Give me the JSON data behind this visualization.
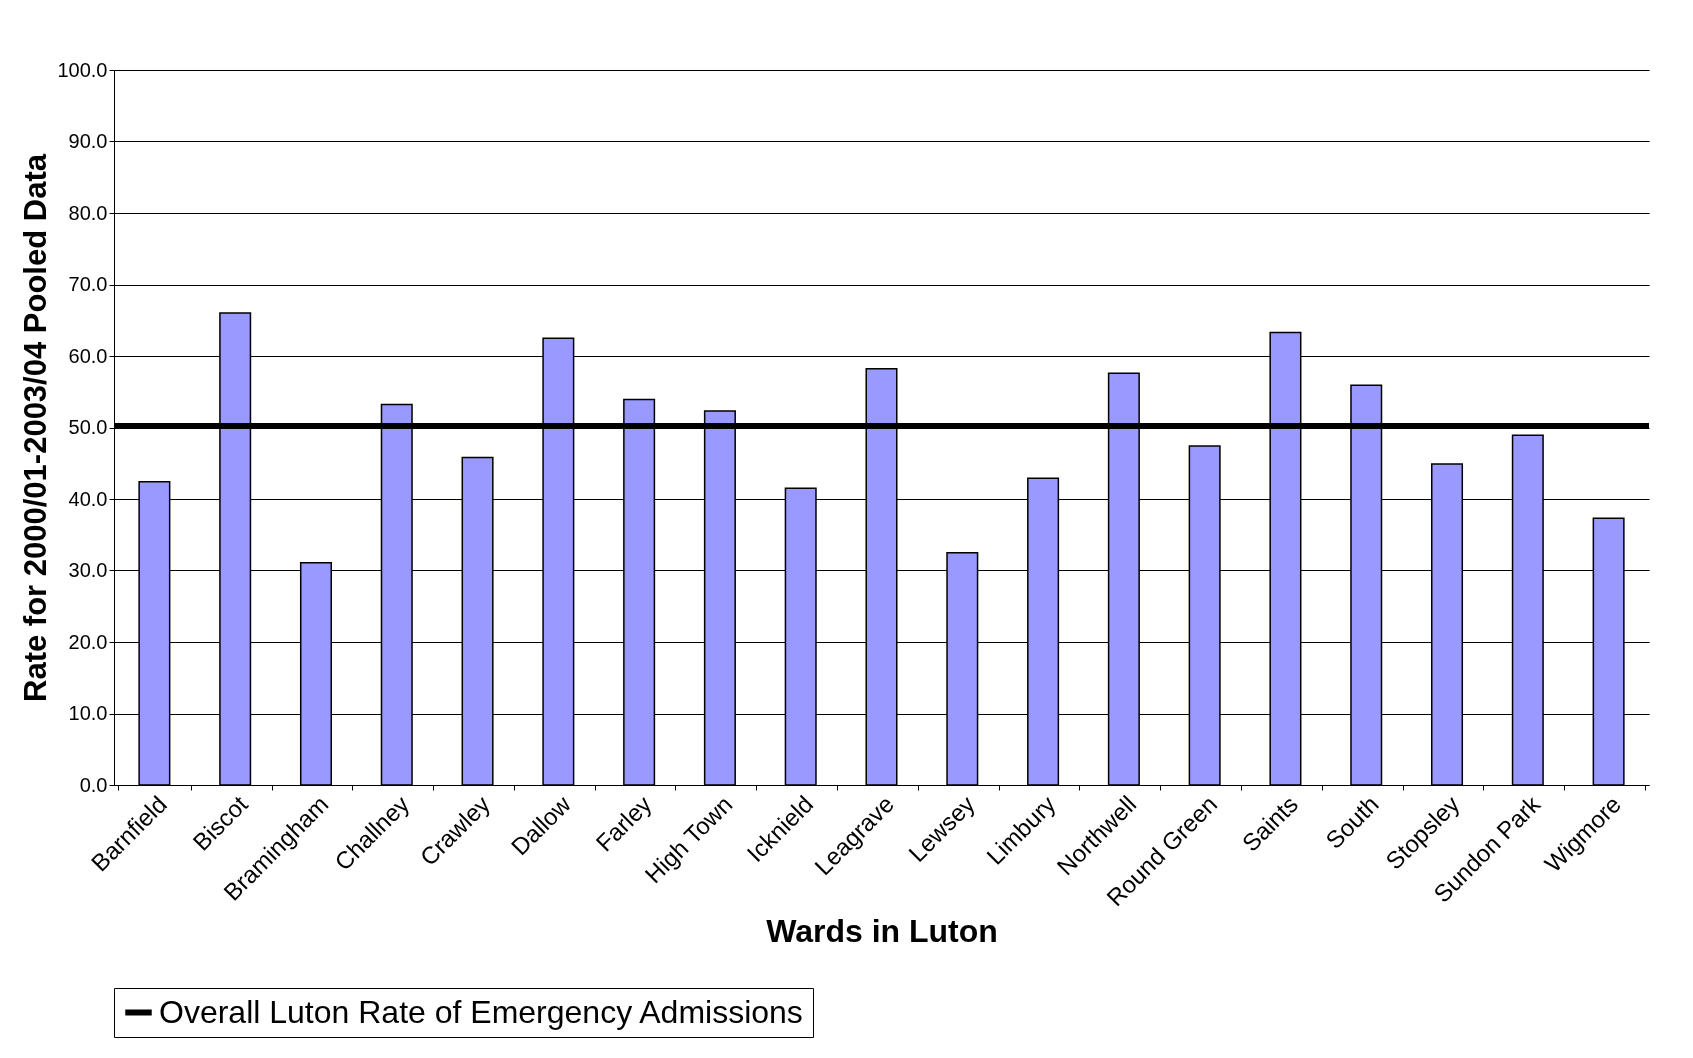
{
  "chart_data": {
    "type": "bar",
    "xlabel": "Wards in Luton",
    "ylabel": "Rate for 2000/01-2003/04 Pooled Data",
    "categories": [
      "Barnfield",
      "Biscot",
      "Bramingham",
      "Challney",
      "Crawley",
      "Dallow",
      "Farley",
      "High Town",
      "Icknield",
      "Leagrave",
      "Lewsey",
      "Limbury",
      "Northwell",
      "Round Green",
      "Saints",
      "South",
      "Stopsley",
      "Sundon Park",
      "Wigmore"
    ],
    "values": [
      42.4,
      66.0,
      31.1,
      53.2,
      45.8,
      62.5,
      53.9,
      52.3,
      41.5,
      58.2,
      32.5,
      42.9,
      57.6,
      47.4,
      63.3,
      55.9,
      44.9,
      48.9,
      37.3
    ],
    "color": "#9999ff",
    "ylim": [
      0,
      100
    ],
    "yticks": [
      {
        "value": 0,
        "label": "0.0"
      },
      {
        "value": 10,
        "label": "10.0"
      },
      {
        "value": 20,
        "label": "20.0"
      },
      {
        "value": 30,
        "label": "30.0"
      },
      {
        "value": 40,
        "label": "40.0"
      },
      {
        "value": 50,
        "label": "50.0"
      },
      {
        "value": 60,
        "label": "60.0"
      },
      {
        "value": 70,
        "label": "70.0"
      },
      {
        "value": 80,
        "label": "80.0"
      },
      {
        "value": 90,
        "label": "90.0"
      },
      {
        "value": 100,
        "label": "100.0"
      }
    ],
    "grid": "y",
    "legend": "bottom",
    "ref_lines": [
      {
        "axis": "y",
        "value": 50.2,
        "label": "Overall Luton Rate of Emergency Admissions",
        "color": "#000000"
      }
    ]
  }
}
